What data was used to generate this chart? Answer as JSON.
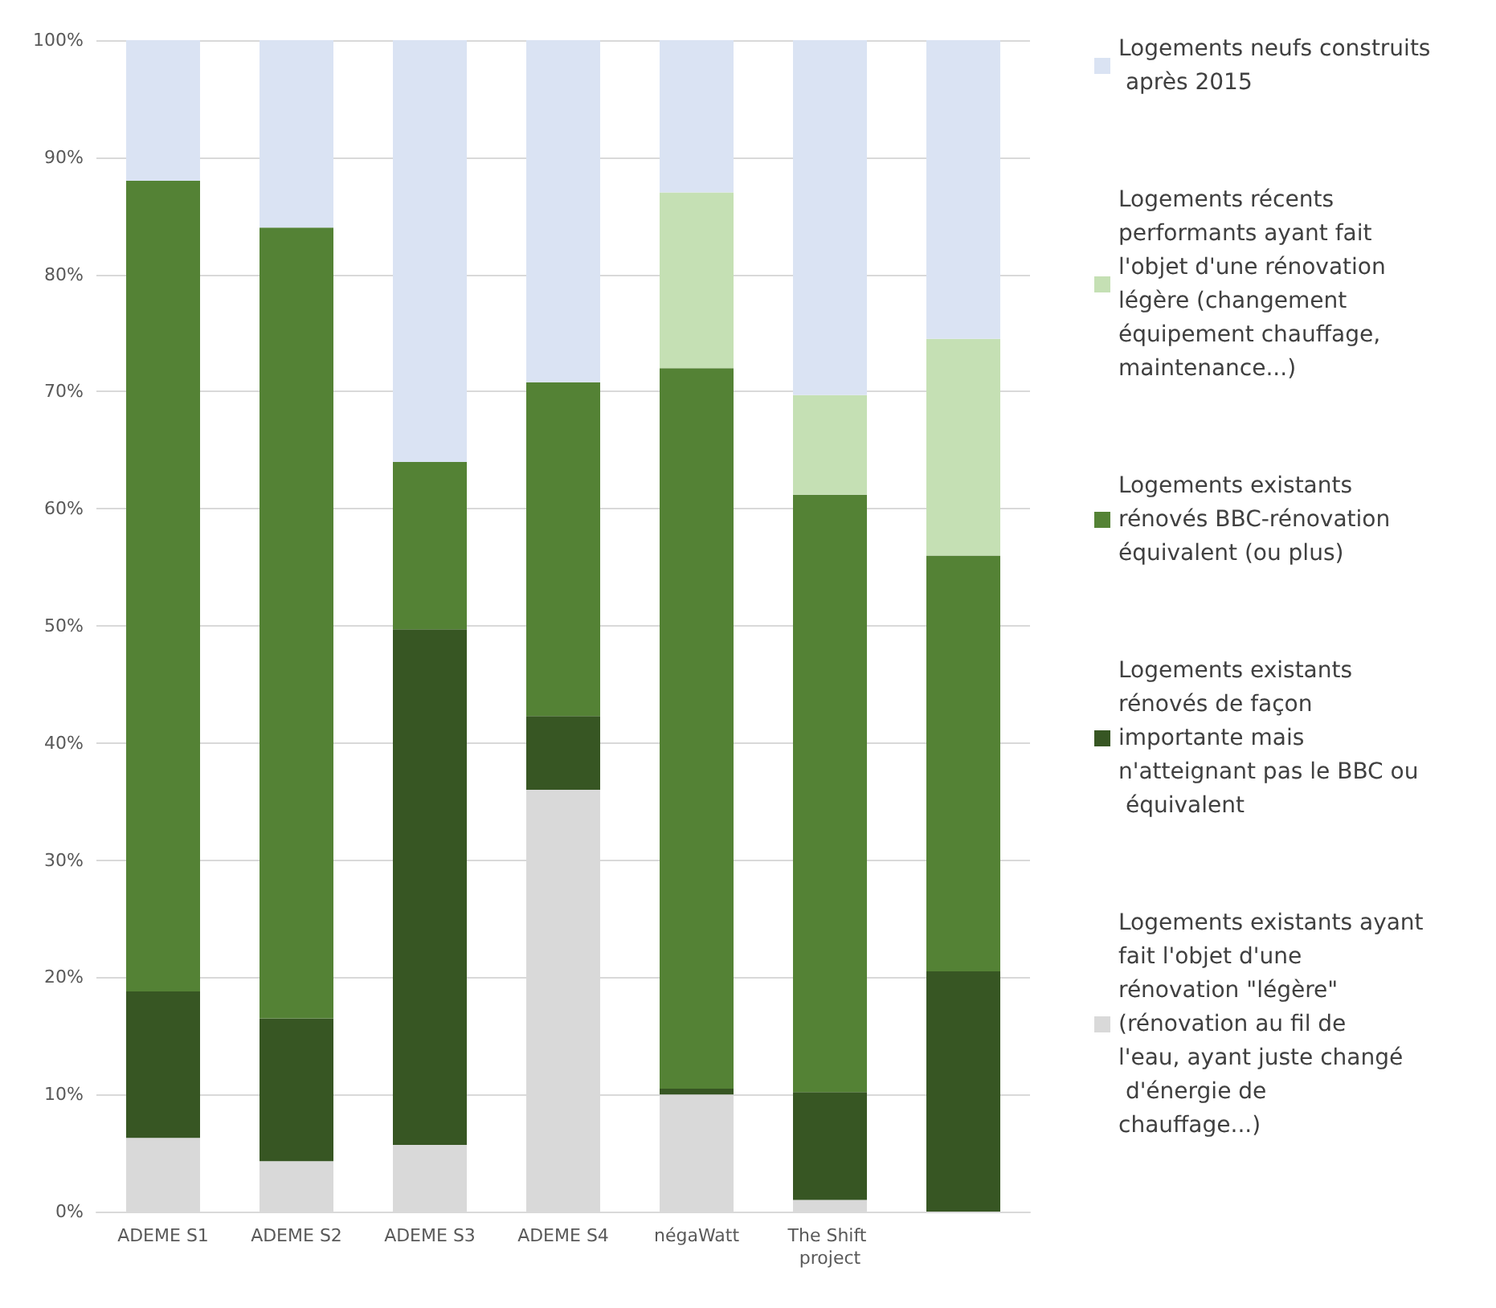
{
  "chart_data": {
    "type": "bar",
    "stacked": true,
    "categories": [
      "ADEME S1",
      "ADEME S2",
      "ADEME S3",
      "ADEME S4",
      "négaWatt",
      "The Shift project",
      null
    ],
    "series": [
      {
        "name": "Logements existants ayant fait l'objet d'une rénovation \"légère\" (rénovation au fil de l'eau, ayant juste changé d'énergie de chauffage...)",
        "color": "#d9d9d9",
        "values": [
          6.3,
          4.3,
          5.7,
          36,
          10,
          1,
          0
        ]
      },
      {
        "name": "Logements existants rénovés de façon importante mais n'atteignant pas le BBC ou équivalent",
        "color": "#375623",
        "values": [
          12.5,
          12.2,
          44,
          6.3,
          0.5,
          9.2,
          20.5
        ]
      },
      {
        "name": "Logements existants rénovés BBC-rénovation équivalent (ou plus)",
        "color": "#548235",
        "values": [
          69.2,
          67.5,
          14.3,
          28.5,
          61.5,
          51,
          35.5
        ]
      },
      {
        "name": "Logements récents performants ayant fait l'objet d'une rénovation légère (changement équipement chauffage, maintenance...)",
        "color": "#c5e0b4",
        "values": [
          0,
          0,
          0,
          0,
          15,
          8.5,
          18.5
        ]
      },
      {
        "name": "Logements neufs construits après 2015",
        "color": "#dae3f3",
        "values": [
          12,
          16,
          36,
          29.2,
          13,
          30.3,
          25.5
        ]
      }
    ],
    "ylim": [
      0,
      100
    ],
    "yticks": [
      {
        "value": 0,
        "label": "0%"
      },
      {
        "value": 10,
        "label": "10%"
      },
      {
        "value": 20,
        "label": "20%"
      },
      {
        "value": 30,
        "label": "30%"
      },
      {
        "value": 40,
        "label": "40%"
      },
      {
        "value": 50,
        "label": "50%"
      },
      {
        "value": 60,
        "label": "60%"
      },
      {
        "value": 70,
        "label": "70%"
      },
      {
        "value": 80,
        "label": "80%"
      },
      {
        "value": 90,
        "label": "90%"
      },
      {
        "value": 100,
        "label": "100%"
      }
    ],
    "grid": "y",
    "legend": "right"
  }
}
